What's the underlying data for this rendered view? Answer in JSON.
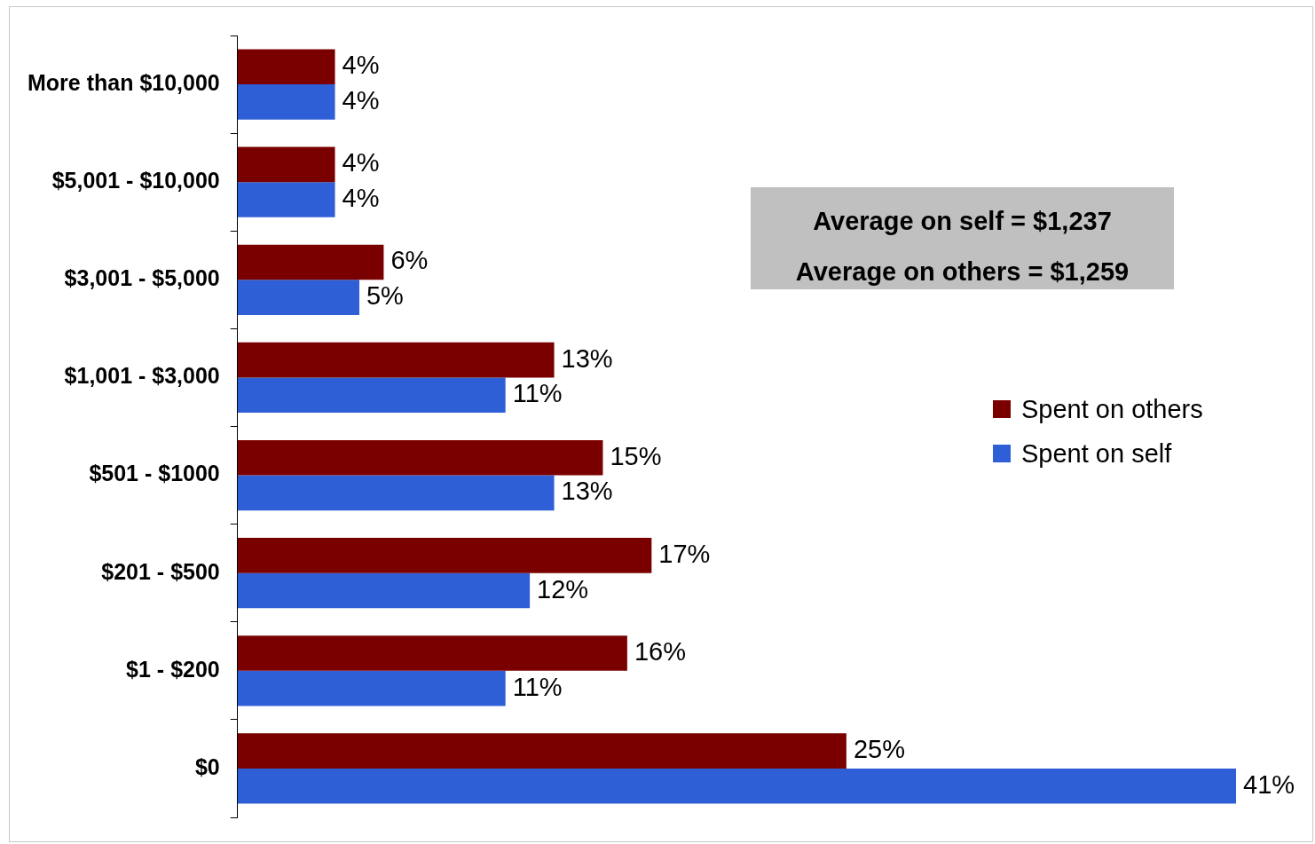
{
  "chart_data": {
    "type": "bar",
    "orientation": "horizontal",
    "categories": [
      "More than $10,000",
      "$5,001 - $10,000",
      "$3,001 - $5,000",
      "$1,001 - $3,000",
      "$501 - $1000",
      "$201 - $500",
      "$1 - $200",
      "$0"
    ],
    "series": [
      {
        "name": "Spent on others",
        "color": "#7a0000",
        "values": [
          4,
          4,
          6,
          13,
          15,
          17,
          16,
          25
        ],
        "value_labels": [
          "4%",
          "4%",
          "6%",
          "13%",
          "15%",
          "17%",
          "16%",
          "25%"
        ]
      },
      {
        "name": "Spent on self",
        "color": "#2f5fd6",
        "values": [
          4,
          4,
          5,
          11,
          13,
          12,
          11,
          41
        ],
        "value_labels": [
          "4%",
          "4%",
          "5%",
          "11%",
          "13%",
          "12%",
          "11%",
          "41%"
        ]
      }
    ],
    "annotations": [
      "Average on self = $1,237",
      "Average on others = $1,259"
    ],
    "legend": "right"
  }
}
